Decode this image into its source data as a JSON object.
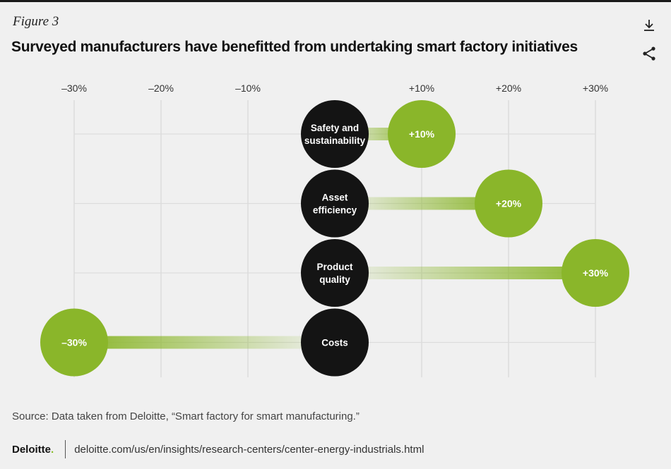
{
  "figure_label": "Figure 3",
  "title": "Surveyed manufacturers have benefitted from undertaking smart factory initiatives",
  "icons": {
    "download": "download-icon",
    "share": "share-icon"
  },
  "colors": {
    "positive": "#8ab62a",
    "category": "#141414",
    "grid": "#dcdcdc"
  },
  "chart_data": {
    "type": "bar",
    "title": "",
    "xlabel": "",
    "ylabel": "",
    "xlim": [
      -30,
      30
    ],
    "ticks": [
      {
        "value": -30,
        "label": "–30%"
      },
      {
        "value": -20,
        "label": "–20%"
      },
      {
        "value": -10,
        "label": "–10%"
      },
      {
        "value": 10,
        "label": "+10%"
      },
      {
        "value": 20,
        "label": "+20%"
      },
      {
        "value": 30,
        "label": "+30%"
      }
    ],
    "grid": true,
    "categories": [
      {
        "label": [
          "Safety and",
          "sustainability"
        ],
        "value": 10,
        "value_label": "+10%"
      },
      {
        "label": [
          "Asset",
          "efficiency"
        ],
        "value": 20,
        "value_label": "+20%"
      },
      {
        "label": [
          "Product",
          "quality"
        ],
        "value": 30,
        "value_label": "+30%"
      },
      {
        "label": [
          "Costs"
        ],
        "value": -30,
        "value_label": "–30%"
      }
    ]
  },
  "source": "Source: Data taken from Deloitte, “Smart factory for smart manufacturing.”",
  "footer": {
    "brand": "Deloitte",
    "brand_dot": ".",
    "url": "deloitte.com/us/en/insights/research-centers/center-energy-industrials.html"
  }
}
